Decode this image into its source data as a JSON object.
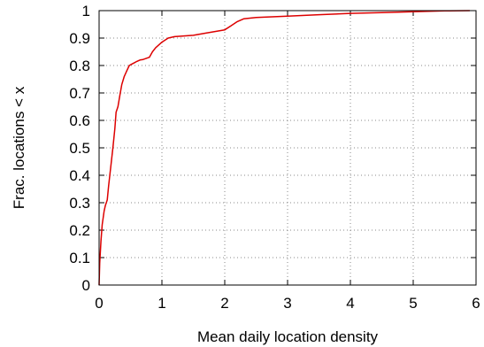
{
  "chart_data": {
    "type": "line",
    "title": "",
    "xlabel": "Mean daily location density",
    "ylabel": "Frac. locations < x",
    "xlim": [
      0,
      6
    ],
    "ylim": [
      0,
      1
    ],
    "x_ticks": [
      "0",
      "1",
      "2",
      "3",
      "4",
      "5",
      "6"
    ],
    "y_ticks": [
      "0",
      "0.1",
      "0.2",
      "0.3",
      "0.4",
      "0.5",
      "0.6",
      "0.7",
      "0.8",
      "0.9",
      "1"
    ],
    "grid": true,
    "legend": "none",
    "series": [
      {
        "color": "#dd0000",
        "x": [
          0,
          0.01,
          0.03,
          0.05,
          0.08,
          0.1,
          0.13,
          0.15,
          0.18,
          0.2,
          0.22,
          0.25,
          0.27,
          0.3,
          0.33,
          0.36,
          0.4,
          0.44,
          0.48,
          0.52,
          0.56,
          0.6,
          0.65,
          0.7,
          0.8,
          0.85,
          0.9,
          0.95,
          1.0,
          1.1,
          1.2,
          1.5,
          1.7,
          2.0,
          2.1,
          2.2,
          2.3,
          2.5,
          3.0,
          3.5,
          4.0,
          4.5,
          5.0,
          5.5,
          5.9
        ],
        "y": [
          0,
          0.08,
          0.16,
          0.22,
          0.27,
          0.29,
          0.31,
          0.36,
          0.42,
          0.46,
          0.5,
          0.57,
          0.63,
          0.65,
          0.69,
          0.73,
          0.76,
          0.78,
          0.8,
          0.805,
          0.81,
          0.815,
          0.82,
          0.822,
          0.83,
          0.85,
          0.865,
          0.875,
          0.885,
          0.9,
          0.905,
          0.91,
          0.918,
          0.93,
          0.945,
          0.96,
          0.97,
          0.975,
          0.98,
          0.985,
          0.99,
          0.993,
          0.996,
          0.999,
          1.0
        ]
      }
    ]
  }
}
